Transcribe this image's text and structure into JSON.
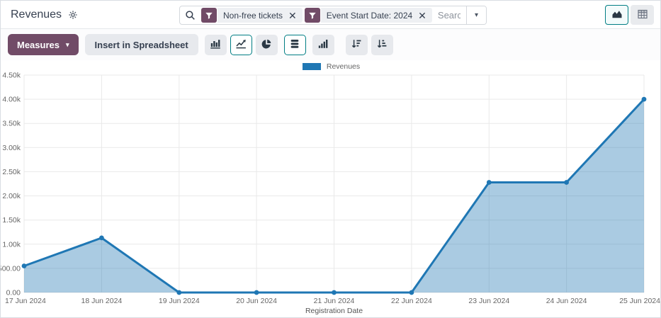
{
  "header": {
    "title": "Revenues",
    "search": {
      "placeholder": "Search...",
      "facets": [
        {
          "label": "Non-free tickets"
        },
        {
          "label": "Event Start Date: 2024"
        }
      ]
    }
  },
  "view_switcher": {
    "buttons": [
      {
        "name": "graph",
        "icon": "area-chart-icon",
        "active": true
      },
      {
        "name": "pivot",
        "icon": "pivot-table-icon",
        "active": false
      }
    ]
  },
  "toolbar": {
    "measures_label": "Measures",
    "insert_spreadsheet_label": "Insert in Spreadsheet",
    "chart_type_buttons": [
      {
        "name": "bar-chart",
        "active": false
      },
      {
        "name": "line-chart",
        "active": true
      },
      {
        "name": "pie-chart",
        "active": false
      }
    ],
    "toggles": [
      {
        "name": "stacked",
        "active": true
      },
      {
        "name": "cumulative",
        "active": false
      }
    ],
    "sort_buttons": [
      {
        "name": "sort-descending",
        "active": false
      },
      {
        "name": "sort-ascending",
        "active": false
      }
    ]
  },
  "icons": {
    "title_gear": "gear-icon",
    "search": "magnifier-icon",
    "facet": "funnel-icon",
    "facet_close": "close-icon",
    "search_dropdown": "caret-down-icon"
  },
  "colors": {
    "primary": "#714B67",
    "accent_teal": "#017E84",
    "facet_bg": "#eef0f3",
    "button_gray": "#e7e9ed"
  },
  "chart_data": {
    "type": "area",
    "title": "",
    "categories": [
      "17 Jun 2024",
      "18 Jun 2024",
      "19 Jun 2024",
      "20 Jun 2024",
      "21 Jun 2024",
      "22 Jun 2024",
      "23 Jun 2024",
      "24 Jun 2024",
      "25 Jun 2024"
    ],
    "series": [
      {
        "name": "Revenues",
        "values": [
          550,
          1130,
          0,
          0,
          0,
          0,
          2280,
          2280,
          4000
        ]
      }
    ],
    "xlabel": "Registration Date",
    "ylabel": "",
    "ylim": [
      0,
      4500
    ],
    "y_axis": {
      "max": 4500,
      "ticks": [
        {
          "label": "0.00",
          "value": 0
        },
        {
          "label": "500.00",
          "value": 500
        },
        {
          "label": "1.00k",
          "value": 1000
        },
        {
          "label": "1.50k",
          "value": 1500
        },
        {
          "label": "2.00k",
          "value": 2000
        },
        {
          "label": "2.50k",
          "value": 2500
        },
        {
          "label": "3.00k",
          "value": 3000
        },
        {
          "label": "3.50k",
          "value": 3500
        },
        {
          "label": "4.00k",
          "value": 4000
        },
        {
          "label": "4.50k",
          "value": 4500
        }
      ]
    },
    "legend": {
      "position": "top",
      "entries": [
        "Revenues"
      ]
    },
    "grid": true,
    "colors": {
      "line": "#1f77b4",
      "fill": "rgba(31,119,180,0.38)",
      "grid": "#e9e9e9",
      "tick": "#666666",
      "axis_title": "#555555"
    }
  }
}
